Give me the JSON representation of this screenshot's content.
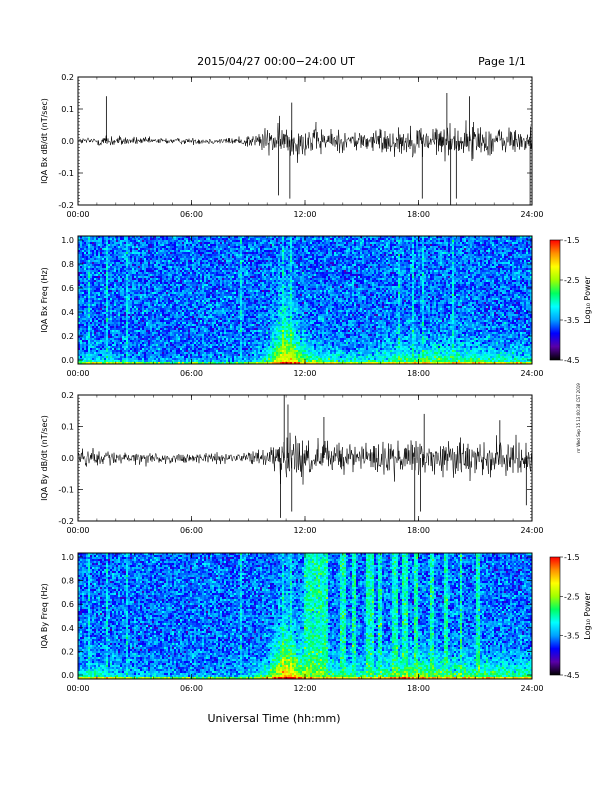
{
  "header": {
    "title": "2015/04/27  00:00−24:00 UT",
    "page": "Page 1/1"
  },
  "footer": {
    "xlabel": "Universal Time (hh:mm)",
    "stamp": "rrr Wed Sep 15 13:00:38 CST 2019"
  },
  "colorbar": {
    "label": "Log₁₀ Power",
    "ticks": [
      "-1.5",
      "-2.5",
      "-3.5",
      "-4.5"
    ],
    "range": [
      -4.5,
      -1.5
    ],
    "colors": [
      "#000000",
      "#5a00a8",
      "#0000ff",
      "#00a0ff",
      "#00ffff",
      "#00ff60",
      "#a0ff00",
      "#ffff00",
      "#ff9000",
      "#ff0000"
    ]
  },
  "x_ticks": [
    "00:00",
    "06:00",
    "12:00",
    "18:00",
    "24:00"
  ],
  "chart_data": [
    {
      "type": "line",
      "ylabel": "IQA Bx dB/dt (nT/sec)",
      "ylim": [
        -0.2,
        0.2
      ],
      "y_ticks": [
        "0.2",
        "0.1",
        "0.0",
        "-0.1",
        "-0.2"
      ],
      "xlim": [
        "00:00",
        "24:00"
      ],
      "line_color": "#000000",
      "envelope": {
        "x_hours": [
          0,
          1,
          1.5,
          2,
          3,
          4,
          5,
          6,
          7,
          8,
          9,
          10,
          11,
          12,
          13,
          14,
          15,
          16,
          17,
          18,
          19,
          20,
          21,
          22,
          23,
          24
        ],
        "amplitude": [
          0.012,
          0.018,
          0.03,
          0.02,
          0.015,
          0.012,
          0.012,
          0.012,
          0.012,
          0.012,
          0.025,
          0.05,
          0.07,
          0.06,
          0.05,
          0.04,
          0.04,
          0.05,
          0.05,
          0.06,
          0.06,
          0.06,
          0.07,
          0.055,
          0.05,
          0.05
        ]
      },
      "spikes": [
        {
          "x": 1.5,
          "y": 0.14
        },
        {
          "x": 10.6,
          "y": -0.17
        },
        {
          "x": 11.3,
          "y": 0.12
        },
        {
          "x": 11.2,
          "y": -0.18
        },
        {
          "x": 18.2,
          "y": -0.18
        },
        {
          "x": 19.7,
          "y": -0.2
        },
        {
          "x": 20.0,
          "y": -0.18
        },
        {
          "x": 19.5,
          "y": 0.15
        },
        {
          "x": 20.7,
          "y": 0.14
        },
        {
          "x": 23.9,
          "y": -0.2
        }
      ]
    },
    {
      "type": "heatmap",
      "ylabel": "IQA Bx Freq (Hz)",
      "ylim": [
        0.0,
        1.0
      ],
      "y_ticks": [
        "1.0",
        "0.8",
        "0.6",
        "0.4",
        "0.2",
        "0.0"
      ],
      "xlim": [
        "00:00",
        "24:00"
      ],
      "value_label": "Log10 Power",
      "value_range": [
        -4.5,
        -1.5
      ],
      "background_level": -3.6,
      "low_freq_enhancement": {
        "x_hours": [
          0,
          1,
          2,
          4,
          6,
          8,
          9,
          10,
          10.5,
          11,
          11.5,
          12,
          13,
          14,
          15,
          16,
          17,
          18,
          19,
          20,
          21,
          22,
          23,
          24
        ],
        "level": [
          -3.0,
          -2.8,
          -3.0,
          -3.2,
          -3.2,
          -3.3,
          -3.2,
          -2.8,
          -2.3,
          -1.9,
          -2.2,
          -2.6,
          -2.8,
          -2.9,
          -2.9,
          -2.8,
          -2.7,
          -2.6,
          -2.6,
          -2.6,
          -2.6,
          -2.7,
          -2.8,
          -2.8
        ],
        "height_hz": [
          0.04,
          0.05,
          0.04,
          0.03,
          0.03,
          0.03,
          0.05,
          0.1,
          0.2,
          0.25,
          0.18,
          0.12,
          0.08,
          0.07,
          0.07,
          0.08,
          0.1,
          0.1,
          0.1,
          0.1,
          0.09,
          0.08,
          0.07,
          0.06
        ]
      },
      "vertical_streaks_hours": [
        0.6,
        1.5,
        2.6,
        8.6,
        10.8,
        11.3,
        17.0,
        17.7,
        18.2,
        19.8
      ]
    },
    {
      "type": "line",
      "ylabel": "IQA By dB/dt (nT/sec)",
      "ylim": [
        -0.2,
        0.2
      ],
      "y_ticks": [
        "0.2",
        "0.1",
        "0.0",
        "-0.1",
        "-0.2"
      ],
      "xlim": [
        "00:00",
        "24:00"
      ],
      "line_color": "#000000",
      "envelope": {
        "x_hours": [
          0,
          1,
          2,
          3,
          4,
          5,
          6,
          7,
          8,
          9,
          10,
          10.5,
          11,
          11.5,
          12,
          13,
          14,
          15,
          16,
          17,
          18,
          19,
          20,
          21,
          22,
          23,
          24
        ],
        "amplitude": [
          0.03,
          0.03,
          0.025,
          0.022,
          0.02,
          0.02,
          0.018,
          0.018,
          0.02,
          0.025,
          0.035,
          0.06,
          0.1,
          0.09,
          0.08,
          0.06,
          0.05,
          0.06,
          0.06,
          0.07,
          0.075,
          0.07,
          0.07,
          0.075,
          0.07,
          0.065,
          0.06
        ]
      },
      "spikes": [
        {
          "x": 10.9,
          "y": 0.2
        },
        {
          "x": 11.1,
          "y": 0.17
        },
        {
          "x": 10.7,
          "y": -0.19
        },
        {
          "x": 11.3,
          "y": -0.17
        },
        {
          "x": 13.0,
          "y": 0.13
        },
        {
          "x": 17.8,
          "y": -0.2
        },
        {
          "x": 18.3,
          "y": 0.14
        },
        {
          "x": 18.1,
          "y": -0.17
        },
        {
          "x": 22.3,
          "y": 0.12
        },
        {
          "x": 23.7,
          "y": -0.15
        }
      ]
    },
    {
      "type": "heatmap",
      "ylabel": "IQA By Freq (Hz)",
      "ylim": [
        0.0,
        1.0
      ],
      "y_ticks": [
        "1.0",
        "0.8",
        "0.6",
        "0.4",
        "0.2",
        "0.0"
      ],
      "xlim": [
        "00:00",
        "24:00"
      ],
      "value_label": "Log10 Power",
      "value_range": [
        -4.5,
        -1.5
      ],
      "background_level": -3.6,
      "low_freq_enhancement": {
        "x_hours": [
          0,
          1,
          2,
          4,
          6,
          8,
          9,
          10,
          10.5,
          11,
          11.5,
          12,
          13,
          14,
          15,
          16,
          17,
          18,
          19,
          20,
          21,
          22,
          23,
          24
        ],
        "level": [
          -2.8,
          -2.7,
          -2.9,
          -3.1,
          -3.2,
          -3.3,
          -3.1,
          -2.7,
          -2.2,
          -1.8,
          -2.1,
          -2.4,
          -2.5,
          -2.7,
          -2.7,
          -2.6,
          -2.5,
          -2.4,
          -2.5,
          -2.6,
          -2.6,
          -2.6,
          -2.6,
          -2.6
        ],
        "height_hz": [
          0.06,
          0.08,
          0.06,
          0.05,
          0.04,
          0.04,
          0.06,
          0.1,
          0.2,
          0.28,
          0.22,
          0.14,
          0.12,
          0.1,
          0.1,
          0.1,
          0.12,
          0.14,
          0.12,
          0.12,
          0.12,
          0.12,
          0.1,
          0.1
        ]
      },
      "broadband_bursts_hours": [
        [
          12.0,
          13.2
        ],
        [
          13.8,
          14.2
        ],
        [
          14.5,
          14.7
        ],
        [
          15.2,
          15.6
        ],
        [
          15.9,
          16.1
        ],
        [
          16.6,
          16.9
        ],
        [
          17.1,
          17.4
        ],
        [
          17.8,
          18.0
        ],
        [
          18.6,
          18.8
        ],
        [
          19.4,
          19.6
        ],
        [
          20.2,
          20.3
        ],
        [
          21.0,
          21.2
        ]
      ],
      "vertical_streaks_hours": [
        0.6,
        1.5,
        2.6,
        8.6,
        10.8,
        11.3
      ]
    }
  ]
}
